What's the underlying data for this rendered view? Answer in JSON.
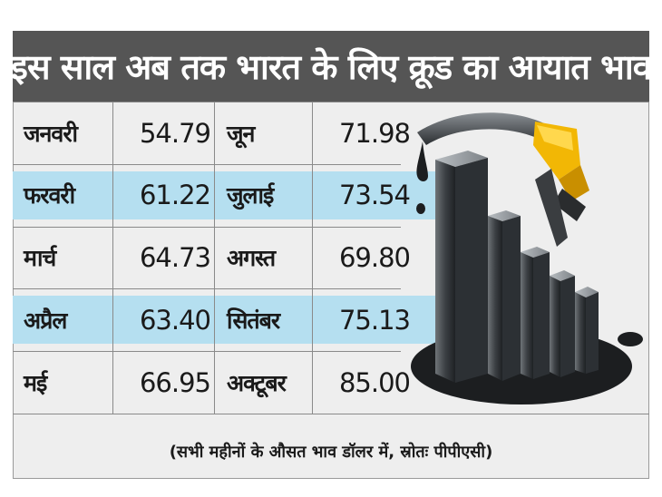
{
  "title": "इस साल अब तक भारत के लिए क्रूड का आयात भाव",
  "rows": [
    {
      "month1": "जनवरी",
      "value1": "54.79",
      "month2": "जून",
      "value2": "71.98",
      "highlight": false
    },
    {
      "month1": "फरवरी",
      "value1": "61.22",
      "month2": "जुलाई",
      "value2": "73.54",
      "highlight": true
    },
    {
      "month1": "मार्च",
      "value1": "64.73",
      "month2": "अगस्त",
      "value2": "69.80",
      "highlight": false
    },
    {
      "month1": "अप्रैल",
      "value1": "63.40",
      "month2": "सितंबर",
      "value2": "75.13",
      "highlight": true
    },
    {
      "month1": "मई",
      "value1": "66.95",
      "month2": "अक्टूबर",
      "value2": "85.00",
      "highlight": false
    }
  ],
  "footer": "(सभी महीनों के औसत भाव डॉलर में, स्रोतः पीपीएसी)",
  "colors": {
    "title_bg": "#555555",
    "highlight_row": "#b5dff0",
    "background": "#eeeeee",
    "nozzle": "#f2b705"
  },
  "icons": [
    "fuel-nozzle-icon",
    "bar-graph-illustration",
    "oil-drip-icon"
  ]
}
